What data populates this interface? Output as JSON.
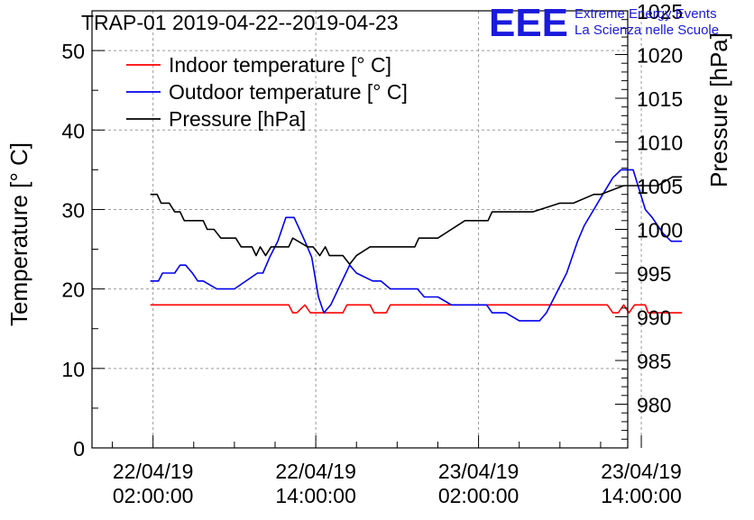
{
  "chart_data": {
    "type": "line",
    "title": "TRAP-01 2019-04-22--2019-04-23",
    "logo": {
      "text": "EEE",
      "line1": "Extreme Energy Events",
      "line2": "La Scienza nelle Scuole",
      "color": "#1a1adc"
    },
    "xlabel": "",
    "ylabel": "Temperature [° C]",
    "y2label": "Pressure [hPa]",
    "ylim": [
      0,
      55
    ],
    "y2lim": [
      975,
      1025
    ],
    "xlim": [
      -4.5,
      35
    ],
    "grid": true,
    "legend_position": "top-left",
    "y_ticks": [
      "0",
      "10",
      "20",
      "30",
      "40",
      "50"
    ],
    "y_tick_values": [
      0,
      10,
      20,
      30,
      40,
      50
    ],
    "y2_ticks": [
      "980",
      "985",
      "990",
      "995",
      "1000",
      "1005",
      "1010",
      "1015",
      "1020",
      "1025"
    ],
    "y2_tick_values": [
      980,
      985,
      990,
      995,
      1000,
      1005,
      1010,
      1015,
      1020,
      1025
    ],
    "x_ticks": [
      {
        "value": 0,
        "date": "22/04/19",
        "time": "02:00:00"
      },
      {
        "value": 12,
        "date": "22/04/19",
        "time": "14:00:00"
      },
      {
        "value": 24,
        "date": "23/04/19",
        "time": "02:00:00"
      },
      {
        "value": 36,
        "date": "23/04/19",
        "time": "14:00:00"
      }
    ],
    "series": [
      {
        "name": "Indoor temperature [° C]",
        "color": "#ff0000",
        "axis": "left",
        "x": [
          -0.2,
          10,
          10.3,
          10.6,
          11.2,
          11.6,
          11.9,
          12.2,
          14,
          14.3,
          16,
          16.3,
          16.6,
          17.2,
          17.5,
          29,
          33.5,
          33.9,
          34.3,
          34.7,
          35.1,
          35.5,
          35.9,
          36.3,
          36.5,
          37.3,
          38,
          39
        ],
        "y": [
          18,
          18,
          17,
          17,
          18,
          17,
          17,
          17,
          17,
          18,
          18,
          17,
          17,
          17,
          18,
          18,
          18,
          17,
          17,
          18,
          17,
          18,
          18,
          18,
          17,
          17,
          17,
          17
        ]
      },
      {
        "name": "Outdoor temperature [° C]",
        "color": "#0000ee",
        "axis": "left",
        "x": [
          -0.2,
          0.4,
          0.7,
          1.6,
          2,
          2.4,
          2.9,
          3.3,
          3.7,
          4.7,
          5.1,
          6,
          7.7,
          8.1,
          8.6,
          9.2,
          9.8,
          10.4,
          11.2,
          11.7,
          12.2,
          12.6,
          13.1,
          14.5,
          15,
          16.2,
          16.8,
          17.5,
          19.5,
          20,
          21,
          22,
          23,
          24.6,
          25,
          26,
          27,
          28.5,
          29,
          30.5,
          31.3,
          31.8,
          32.5,
          33.2,
          33.9,
          34.5,
          35.4,
          36.3,
          36.8,
          37.6,
          38.2,
          39
        ],
        "y": [
          21,
          21,
          22,
          22,
          23,
          23,
          22,
          21,
          21,
          20,
          20,
          20,
          22,
          22,
          24,
          26,
          29,
          29,
          26,
          24,
          19,
          17,
          18,
          23,
          22,
          21,
          21,
          20,
          20,
          19,
          19,
          18,
          18,
          18,
          17,
          17,
          16,
          16,
          17,
          22,
          26,
          28,
          30,
          32,
          34,
          35,
          35,
          30,
          29,
          27,
          26,
          26
        ]
      },
      {
        "name": "Pressure [hPa]",
        "color": "#000000",
        "axis": "right",
        "x": [
          -0.2,
          0.3,
          0.6,
          1.2,
          1.6,
          2,
          2.3,
          2.7,
          3.7,
          4,
          4.5,
          5,
          6.1,
          6.5,
          7.3,
          7.6,
          7.9,
          8.3,
          8.7,
          9.2,
          10,
          10.3,
          11.4,
          11.8,
          12.3,
          12.7,
          13,
          13.5,
          14,
          14.5,
          15,
          16,
          17,
          19.3,
          19.6,
          20,
          21,
          22,
          23,
          24.7,
          25,
          27,
          28,
          30,
          31,
          32.5,
          33,
          34.7,
          35.5,
          36.5,
          37.2,
          38.3,
          39
        ],
        "y": [
          1004,
          1004,
          1003,
          1003,
          1002,
          1002,
          1001,
          1001,
          1001,
          1000,
          1000,
          999,
          999,
          998,
          998,
          997,
          998,
          997,
          998,
          998,
          998,
          999,
          998,
          998,
          997,
          998,
          997,
          997,
          997,
          996,
          997,
          998,
          998,
          998,
          999,
          999,
          999,
          1000,
          1001,
          1001,
          1002,
          1002,
          1002,
          1003,
          1003,
          1004,
          1004,
          1005,
          1005,
          1005,
          1005,
          1006,
          1006
        ]
      }
    ]
  }
}
